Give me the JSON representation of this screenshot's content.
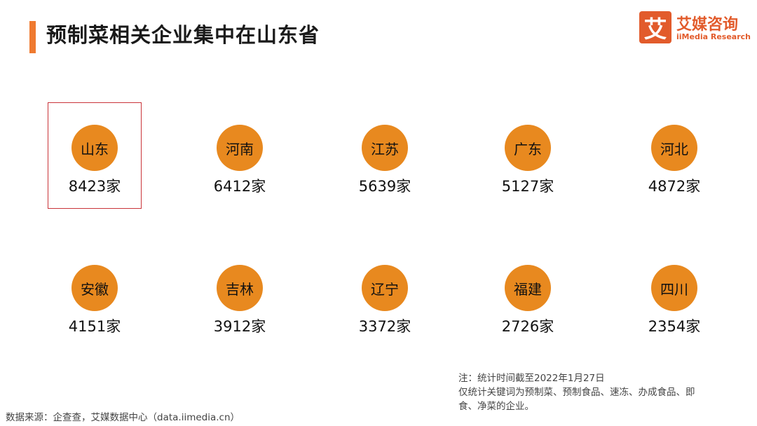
{
  "title": "预制菜相关企业集中在山东省",
  "logo": {
    "mark": "艾",
    "name": "艾媒咨询",
    "subtitle": "iiMedia Research",
    "color": "#e25b2b"
  },
  "chart_data": {
    "type": "bubble-grid",
    "unit": "家",
    "highlight": "山东",
    "circle_color": "#e8891f",
    "highlight_color": "#c9343a",
    "categories": [
      "山东",
      "河南",
      "江苏",
      "广东",
      "河北",
      "安徽",
      "吉林",
      "辽宁",
      "福建",
      "四川"
    ],
    "values": [
      8423,
      6412,
      5639,
      5127,
      4872,
      4151,
      3912,
      3372,
      2726,
      2354
    ],
    "labels": [
      "8423家",
      "6412家",
      "5639家",
      "5127家",
      "4872家",
      "4151家",
      "3912家",
      "3372家",
      "2726家",
      "2354家"
    ]
  },
  "note": {
    "line1": "注：统计时间截至2022年1月27日",
    "line2": "仅统计关键词为预制菜、预制食品、速冻、办成食品、即",
    "line3": "食、净菜的企业。"
  },
  "source": "数据来源：企查查，艾媒数据中心（data.iimedia.cn）"
}
